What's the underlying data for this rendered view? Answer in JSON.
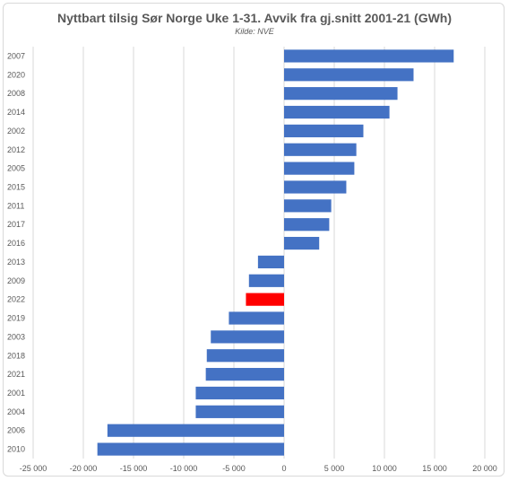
{
  "chart_data": {
    "type": "bar",
    "orientation": "horizontal",
    "title": "Nyttbart tilsig Sør Norge Uke 1-31. Avvik fra gj.snitt 2001-21 (GWh)",
    "subtitle": "Kilde: NVE",
    "categories": [
      "2007",
      "2020",
      "2008",
      "2014",
      "2002",
      "2012",
      "2005",
      "2015",
      "2011",
      "2017",
      "2016",
      "2013",
      "2009",
      "2022",
      "2019",
      "2003",
      "2018",
      "2021",
      "2001",
      "2004",
      "2006",
      "2010"
    ],
    "values": [
      16900,
      12900,
      11300,
      10500,
      7900,
      7200,
      7000,
      6200,
      4700,
      4500,
      3500,
      -2600,
      -3500,
      -3800,
      -5500,
      -7300,
      -7700,
      -7800,
      -8800,
      -8800,
      -17600,
      -18600
    ],
    "highlight_category": "2022",
    "xlim": [
      -25000,
      20000
    ],
    "xticks": [
      -25000,
      -20000,
      -15000,
      -10000,
      -5000,
      0,
      5000,
      10000,
      15000,
      20000
    ],
    "xtick_labels": [
      "-25 000",
      "-20 000",
      "-15 000",
      "-10 000",
      "-5 000",
      "0",
      "5 000",
      "10 000",
      "15 000",
      "20 000"
    ],
    "grid": true,
    "colors": {
      "bar": "#4472C4",
      "highlight": "#FF0000",
      "grid": "#D9D9D9"
    }
  }
}
